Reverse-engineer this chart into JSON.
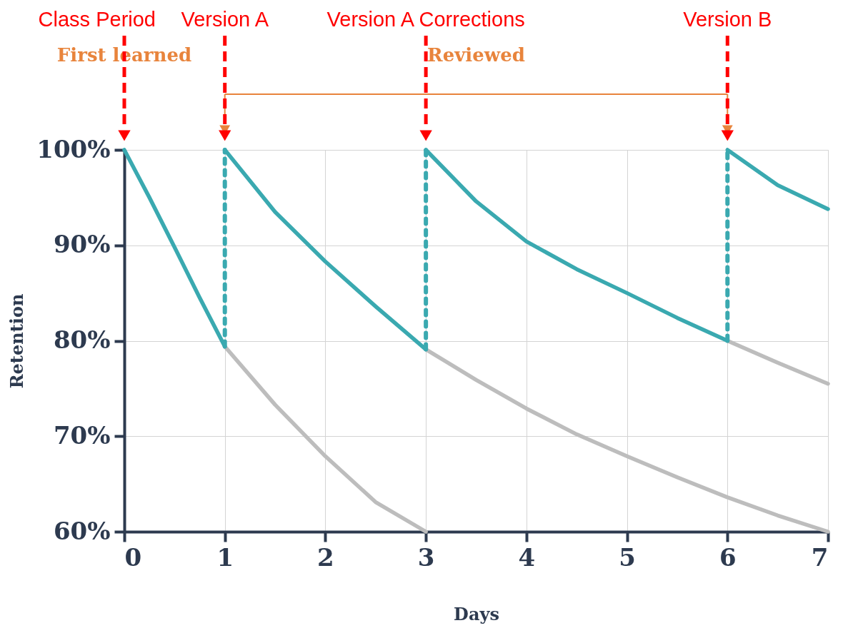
{
  "chart_data": {
    "type": "line",
    "xlabel": "Days",
    "ylabel": "Retention",
    "xlim": [
      0,
      7
    ],
    "ylim": [
      60,
      100
    ],
    "xticks": [
      0,
      1,
      2,
      3,
      4,
      5,
      6,
      7
    ],
    "yticks": [
      {
        "value": 60,
        "label": "60%"
      },
      {
        "value": 70,
        "label": "70%"
      },
      {
        "value": 80,
        "label": "80%"
      },
      {
        "value": 90,
        "label": "90%"
      },
      {
        "value": 100,
        "label": "100%"
      }
    ],
    "grid": true,
    "marker": "none",
    "line_style": "solid",
    "series": [
      {
        "color": "#bdbdbd",
        "x": [
          1,
          1.5,
          2,
          2.5,
          3
        ],
        "values": [
          79.4,
          73.3,
          67.9,
          63.1,
          60
        ]
      },
      {
        "color": "#bdbdbd",
        "x": [
          3,
          3.5,
          4,
          4.5,
          5,
          5.5,
          6,
          6.5,
          7
        ],
        "values": [
          79.1,
          75.9,
          72.9,
          70.2,
          67.9,
          65.7,
          63.6,
          61.7,
          60
        ]
      },
      {
        "color": "#bdbdbd",
        "x": [
          6,
          6.5,
          7
        ],
        "values": [
          80,
          77.7,
          75.5
        ]
      },
      {
        "color": "#3aa9b0",
        "x": [
          0,
          0.25,
          0.5,
          0.75,
          1
        ],
        "values": [
          100,
          95.0,
          89.8,
          84.5,
          79.4
        ]
      },
      {
        "color": "#3aa9b0",
        "x": [
          1,
          1.5,
          2,
          2.5,
          3
        ],
        "values": [
          100,
          93.5,
          88.3,
          83.6,
          79.1
        ]
      },
      {
        "color": "#3aa9b0",
        "x": [
          3,
          3.5,
          4,
          4.5,
          5,
          5.5,
          6
        ],
        "values": [
          100,
          94.6,
          90.4,
          87.5,
          85.0,
          82.4,
          80.0
        ]
      },
      {
        "color": "#3aa9b0",
        "x": [
          6,
          6.5,
          7
        ],
        "values": [
          100,
          96.3,
          93.8
        ]
      },
      {
        "color": "#3aa9b0",
        "line_style": "dashed",
        "x": [
          1,
          1
        ],
        "values": [
          79.4,
          100
        ]
      },
      {
        "color": "#3aa9b0",
        "line_style": "dashed",
        "x": [
          3,
          3
        ],
        "values": [
          79.1,
          100
        ]
      },
      {
        "color": "#3aa9b0",
        "line_style": "dashed",
        "x": [
          6,
          6
        ],
        "values": [
          80,
          100
        ]
      }
    ],
    "annotations": [
      "Class Period",
      "Version A",
      "Version A Corrections",
      "Version B",
      "First learned",
      "Reviewed"
    ]
  }
}
